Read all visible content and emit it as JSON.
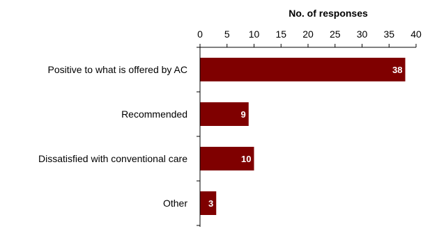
{
  "chart_data": {
    "type": "bar",
    "orientation": "horizontal",
    "xlabel": "No. of responses",
    "xlabel_position": "top",
    "ylabel": "",
    "xlim": [
      0,
      40
    ],
    "xticks": [
      0,
      5,
      10,
      15,
      20,
      25,
      30,
      35,
      40
    ],
    "grid": false,
    "legend": "none",
    "categories": [
      "Positive to what is offered by AC",
      "Recommended",
      "Dissatisfied with conventional care",
      "Other"
    ],
    "values": [
      38,
      9,
      10,
      3
    ],
    "data_labels": [
      "38",
      "9",
      "10",
      "3"
    ],
    "bar_color": "#7f0000",
    "data_label_color": "#ffffff"
  }
}
